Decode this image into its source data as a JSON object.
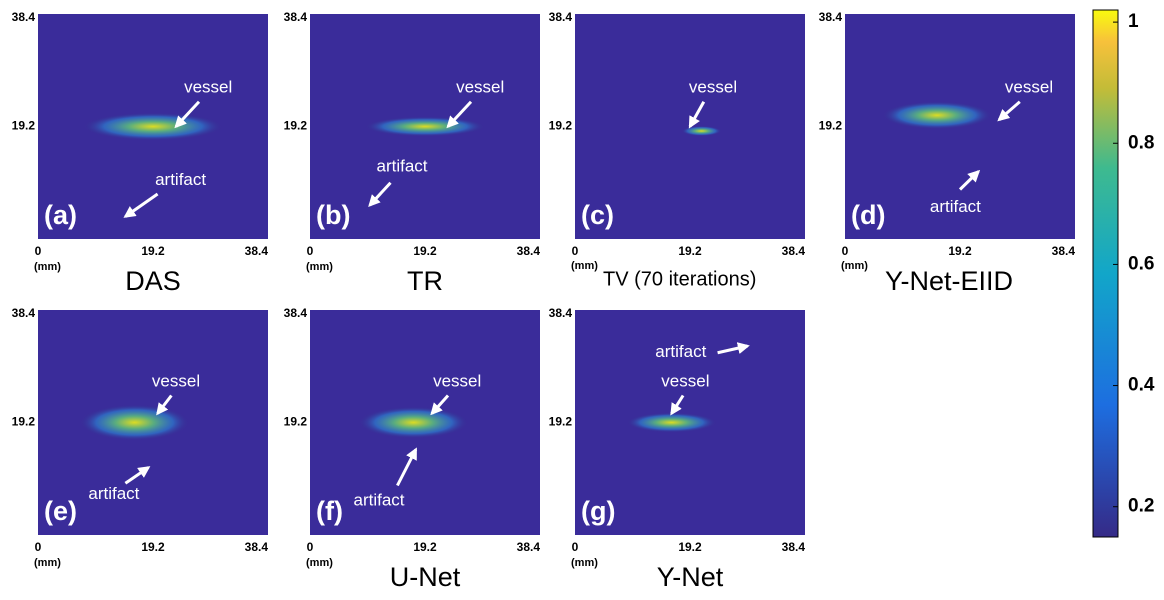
{
  "panels": [
    {
      "label": "(a)",
      "title": "DAS",
      "annotations": [
        "vessel",
        "artifact"
      ]
    },
    {
      "label": "(b)",
      "title": "TR",
      "annotations": [
        "vessel",
        "artifact"
      ]
    },
    {
      "label": "(c)",
      "title": "TV (70 iterations)",
      "annotations": [
        "vessel"
      ]
    },
    {
      "label": "(d)",
      "title": "Y-Net-EIID",
      "annotations": [
        "vessel",
        "artifact"
      ]
    },
    {
      "label": "(e)",
      "annotations": [
        "vessel",
        "artifact"
      ]
    },
    {
      "label": "(f)",
      "title": "U-Net",
      "annotations": [
        "vessel",
        "artifact"
      ]
    },
    {
      "label": "(g)",
      "title": "Y-Net",
      "annotations": [
        "artifact",
        "vessel"
      ]
    }
  ],
  "axis": {
    "ticks": [
      "0",
      "19.2",
      "38.4"
    ],
    "unit": "(mm)"
  },
  "colorbar": {
    "lim": [
      0.15,
      1.02
    ],
    "ticks": [
      1,
      0.8,
      0.6,
      0.4,
      0.2
    ]
  }
}
